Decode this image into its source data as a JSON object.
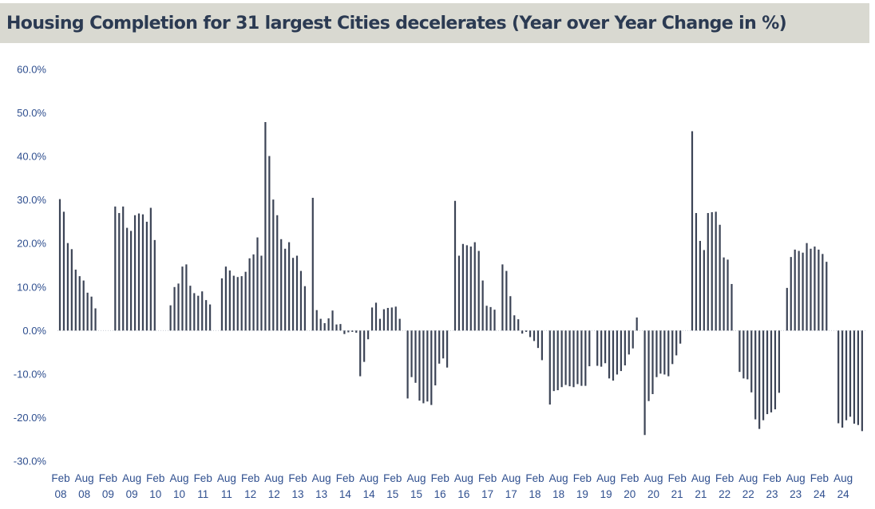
{
  "chart_data": {
    "type": "bar",
    "title": "Housing Completion for 31 largest Cities decelerates (Year over Year Change in %)",
    "xlabel": "",
    "ylabel": "",
    "ylim": [
      -30,
      60
    ],
    "y_ticks": [
      "60.0%",
      "50.0%",
      "40.0%",
      "30.0%",
      "20.0%",
      "10.0%",
      "0.0%",
      "-10.0%",
      "-20.0%",
      "-30.0%"
    ],
    "y_tick_values": [
      60,
      50,
      40,
      30,
      20,
      10,
      0,
      -10,
      -20,
      -30
    ],
    "x_tick_labels": [
      [
        "Feb",
        "08"
      ],
      [
        "Aug",
        "08"
      ],
      [
        "Feb",
        "09"
      ],
      [
        "Aug",
        "09"
      ],
      [
        "Feb",
        "10"
      ],
      [
        "Aug",
        "10"
      ],
      [
        "Feb",
        "11"
      ],
      [
        "Aug",
        "11"
      ],
      [
        "Feb",
        "12"
      ],
      [
        "Aug",
        "12"
      ],
      [
        "Feb",
        "13"
      ],
      [
        "Aug",
        "13"
      ],
      [
        "Feb",
        "14"
      ],
      [
        "Aug",
        "14"
      ],
      [
        "Feb",
        "15"
      ],
      [
        "Aug",
        "15"
      ],
      [
        "Feb",
        "16"
      ],
      [
        "Aug",
        "16"
      ],
      [
        "Feb",
        "17"
      ],
      [
        "Aug",
        "17"
      ],
      [
        "Feb",
        "18"
      ],
      [
        "Aug",
        "18"
      ],
      [
        "Feb",
        "19"
      ],
      [
        "Aug",
        "19"
      ],
      [
        "Feb",
        "20"
      ],
      [
        "Aug",
        "20"
      ],
      [
        "Feb",
        "21"
      ],
      [
        "Aug",
        "21"
      ],
      [
        "Feb",
        "22"
      ],
      [
        "Aug",
        "22"
      ],
      [
        "Feb",
        "23"
      ],
      [
        "Aug",
        "23"
      ],
      [
        "Feb",
        "24"
      ],
      [
        "Aug",
        "24"
      ]
    ],
    "grid": false,
    "legend": "none",
    "bar_color": "#3c4456",
    "series": [
      {
        "values": [
          30.2,
          27.3,
          20.1,
          18.7,
          14.0,
          12.5,
          11.5,
          8.7,
          7.8,
          5.1,
          0,
          0,
          0,
          0,
          28.5,
          27.0,
          28.5,
          23.6,
          22.9,
          26.5,
          26.9,
          26.7,
          25.0,
          28.2,
          20.8,
          0,
          0,
          0,
          5.8,
          10.0,
          10.8,
          14.7,
          15.2,
          10.3,
          8.6,
          8.0,
          9.0,
          7.0,
          6.0,
          0,
          0,
          12.0,
          14.7,
          13.8,
          12.6,
          12.3,
          12.5,
          13.5,
          16.6,
          17.5,
          21.4,
          17.2,
          47.9,
          40.1,
          30.1,
          26.5,
          21.0,
          18.8,
          20.3,
          16.7,
          17.2,
          13.7,
          10.2,
          0,
          30.5,
          4.7,
          2.7,
          1.7,
          2.8,
          4.6,
          1.4,
          1.5,
          -0.8,
          -0.4,
          -0.3,
          -0.5,
          -10.5,
          -7.2,
          -2.0,
          5.3,
          6.4,
          2.7,
          4.9,
          5.2,
          5.3,
          5.5,
          2.7,
          0,
          -15.6,
          -10.7,
          -12.0,
          -16.1,
          -16.7,
          -16.3,
          -17.1,
          -12.6,
          -7.6,
          -6.4,
          -8.5,
          0,
          29.8,
          17.2,
          19.9,
          19.6,
          19.3,
          20.3,
          18.3,
          11.5,
          5.7,
          5.4,
          4.8,
          0,
          15.2,
          13.7,
          7.9,
          3.5,
          2.6,
          -0.7,
          -0.3,
          -1.5,
          -2.4,
          -4.0,
          -6.8,
          0,
          -17.0,
          -13.9,
          -13.7,
          -13.0,
          -12.5,
          -12.8,
          -13.0,
          -12.3,
          -12.7,
          -12.7,
          -8.2,
          0,
          -8.1,
          -8.3,
          -7.5,
          -11.0,
          -11.5,
          -10.1,
          -9.3,
          -8.0,
          -5.5,
          -4.1,
          3.0,
          0,
          -24.0,
          -16.2,
          -14.6,
          -10.7,
          -9.9,
          -10.1,
          -10.5,
          -7.7,
          -5.7,
          -3.0,
          0,
          0,
          45.8,
          27.0,
          20.6,
          18.5,
          27.0,
          27.2,
          27.3,
          24.3,
          16.8,
          16.3,
          10.7,
          0,
          -9.5,
          -11.0,
          -11.2,
          -14.2,
          -20.4,
          -22.6,
          -20.6,
          -19.2,
          -18.8,
          -18.1,
          -14.3,
          0,
          9.8,
          16.9,
          18.6,
          18.3,
          17.9,
          20.1,
          18.8,
          19.3,
          18.6,
          17.6,
          15.8,
          0,
          0,
          -21.3,
          -22.3,
          -20.6,
          -19.8,
          -21.4,
          -21.7,
          -23.1
        ]
      }
    ]
  }
}
